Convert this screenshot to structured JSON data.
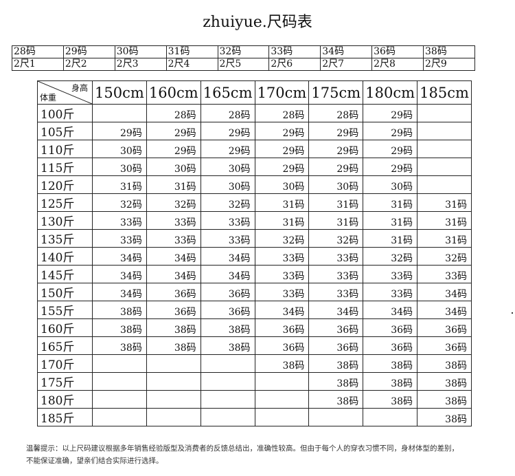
{
  "title": "zhuiyue.尺码表",
  "conversion": {
    "sizes": [
      "28码",
      "29码",
      "30码",
      "31码",
      "32码",
      "33码",
      "34码",
      "36码",
      "38码"
    ],
    "waists": [
      "2尺1",
      "2尺2",
      "2尺3",
      "2尺4",
      "2尺5",
      "2尺6",
      "2尺7",
      "2尺8",
      "2尺9"
    ]
  },
  "size_table": {
    "corner_height": "身高",
    "corner_weight": "体重",
    "heights": [
      "150cm",
      "160cm",
      "165cm",
      "170cm",
      "175cm",
      "180cm",
      "185cm"
    ],
    "rows": [
      {
        "weight": "100斤",
        "cells": [
          "",
          "28码",
          "28码",
          "28码",
          "28码",
          "29码",
          ""
        ]
      },
      {
        "weight": "105斤",
        "cells": [
          "29码",
          "29码",
          "29码",
          "29码",
          "29码",
          "29码",
          ""
        ]
      },
      {
        "weight": "110斤",
        "cells": [
          "30码",
          "29码",
          "29码",
          "29码",
          "29码",
          "29码",
          ""
        ]
      },
      {
        "weight": "115斤",
        "cells": [
          "30码",
          "30码",
          "30码",
          "29码",
          "29码",
          "29码",
          ""
        ]
      },
      {
        "weight": "120斤",
        "cells": [
          "31码",
          "31码",
          "30码",
          "30码",
          "30码",
          "30码",
          ""
        ]
      },
      {
        "weight": "125斤",
        "cells": [
          "32码",
          "32码",
          "32码",
          "31码",
          "31码",
          "31码",
          "31码"
        ]
      },
      {
        "weight": "130斤",
        "cells": [
          "33码",
          "33码",
          "33码",
          "31码",
          "31码",
          "31码",
          "31码"
        ]
      },
      {
        "weight": "135斤",
        "cells": [
          "33码",
          "33码",
          "33码",
          "32码",
          "32码",
          "31码",
          "31码"
        ]
      },
      {
        "weight": "140斤",
        "cells": [
          "34码",
          "34码",
          "34码",
          "33码",
          "33码",
          "32码",
          "32码"
        ]
      },
      {
        "weight": "145斤",
        "cells": [
          "34码",
          "34码",
          "34码",
          "33码",
          "33码",
          "33码",
          "33码"
        ]
      },
      {
        "weight": "150斤",
        "cells": [
          "34码",
          "36码",
          "36码",
          "33码",
          "33码",
          "33码",
          "34码"
        ]
      },
      {
        "weight": "155斤",
        "cells": [
          "38码",
          "36码",
          "36码",
          "34码",
          "34码",
          "34码",
          "34码"
        ]
      },
      {
        "weight": "160斤",
        "cells": [
          "38码",
          "38码",
          "38码",
          "36码",
          "36码",
          "36码",
          "36码"
        ]
      },
      {
        "weight": "165斤",
        "cells": [
          "38码",
          "38码",
          "38码",
          "36码",
          "36码",
          "36码",
          "36码"
        ]
      },
      {
        "weight": "170斤",
        "cells": [
          "",
          "",
          "",
          "38码",
          "38码",
          "38码",
          "38码"
        ]
      },
      {
        "weight": "175斤",
        "cells": [
          "",
          "",
          "",
          "",
          "38码",
          "38码",
          "38码"
        ]
      },
      {
        "weight": "180斤",
        "cells": [
          "",
          "",
          "",
          "",
          "38码",
          "38码",
          "38码"
        ]
      },
      {
        "weight": "185斤",
        "cells": [
          "",
          "",
          "",
          "",
          "",
          "",
          "38码"
        ]
      }
    ]
  },
  "notes": {
    "line1": "温馨提示：以上尺码建议根据多年销售经验版型及消费者的反馈总结出，准确性较高。但由于每个人的穿衣习惯不同，身材体型的差别，",
    "line2": "不能保证准确，望亲们结合实际进行选择。"
  }
}
